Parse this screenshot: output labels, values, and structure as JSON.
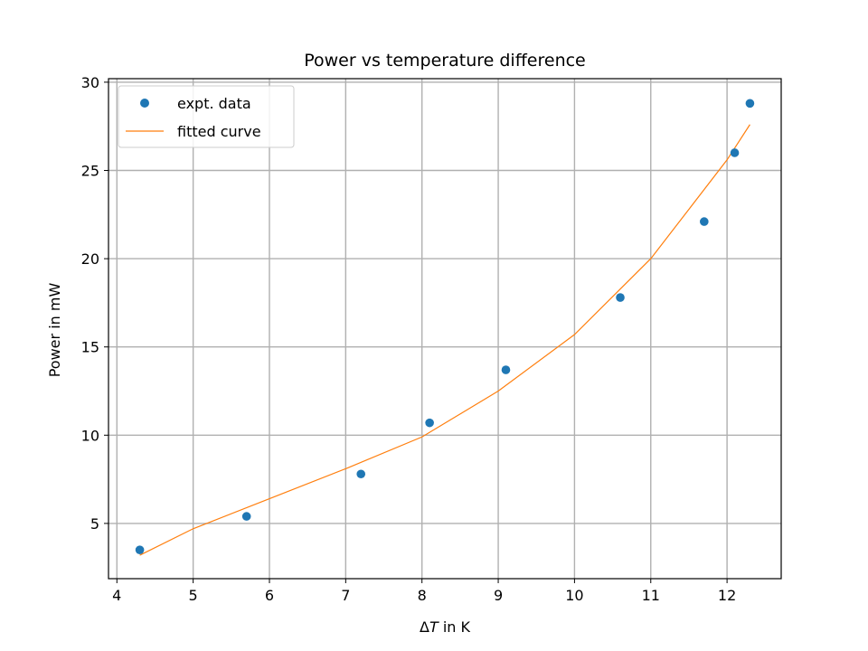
{
  "chart_data": {
    "type": "scatter",
    "title": "Power vs temperature difference",
    "xlabel_prefix": "Δ",
    "xlabel_var": "T",
    "xlabel_suffix": " in K",
    "ylabel": "Power in mW",
    "xlim": [
      3.89,
      12.71
    ],
    "ylim": [
      1.87,
      30.2
    ],
    "xticks": [
      4,
      5,
      6,
      7,
      8,
      9,
      10,
      11,
      12
    ],
    "yticks": [
      5,
      10,
      15,
      20,
      25,
      30
    ],
    "grid": true,
    "legend_position": "upper-left",
    "series": [
      {
        "name": "expt. data",
        "kind": "points",
        "color": "#1f77b4",
        "x": [
          4.3,
          5.7,
          7.2,
          8.1,
          9.1,
          10.6,
          11.7,
          12.1,
          12.3
        ],
        "y": [
          3.5,
          5.4,
          7.8,
          10.7,
          13.7,
          17.8,
          22.1,
          26.0,
          28.8
        ]
      },
      {
        "name": "fitted curve",
        "kind": "line",
        "color": "#ff7f0e",
        "x": [
          4.3,
          5.0,
          6.0,
          7.0,
          8.0,
          9.0,
          10.0,
          11.0,
          11.5,
          12.0,
          12.3
        ],
        "y": [
          3.2,
          4.7,
          6.4,
          8.1,
          9.9,
          12.5,
          15.7,
          20.0,
          22.8,
          25.6,
          27.6
        ]
      }
    ]
  }
}
